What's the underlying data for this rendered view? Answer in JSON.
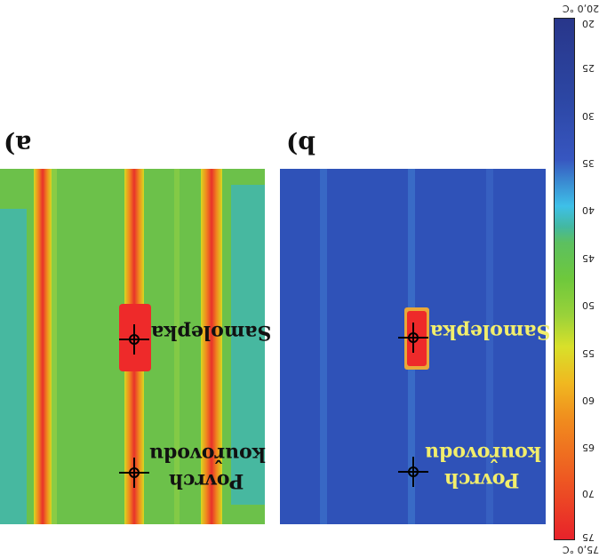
{
  "panel_a_label": "a)",
  "panel_b_label": "b)",
  "annotation_sticker": "Samolepka",
  "annotation_surface_line1": "Povrch",
  "annotation_surface_line2": "kouřovodu",
  "scale_top": "20,0 °C",
  "scale_bottom": "75,0 °C",
  "scale_ticks": [
    "20",
    "25",
    "30",
    "35",
    "40",
    "45",
    "50",
    "55",
    "60",
    "65",
    "70",
    "75"
  ],
  "colors": {
    "panel_a_bg": "#6cc14a",
    "panel_b_bg": "#2f52b8",
    "hot": "#e8322a",
    "annotation_b": "#f2ee6c"
  }
}
